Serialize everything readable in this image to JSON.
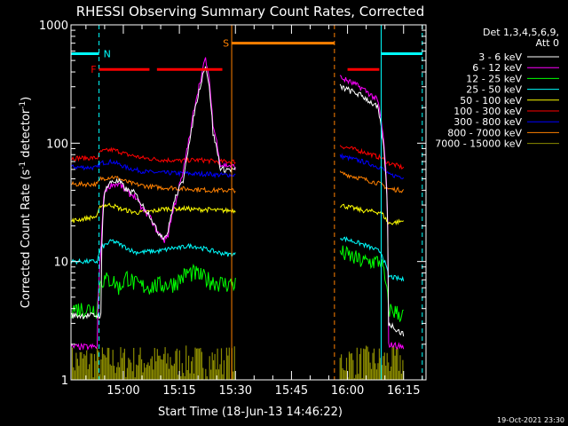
{
  "chart_data": {
    "type": "line",
    "title": "RHESSI Observing Summary Count Rates, Corrected",
    "xlabel": "Start Time (18-Jun-13 14:46:22)",
    "ylabel": "Corrected Count Rate (s",
    "ylabel_sup1": "-1",
    "ylabel_mid": " detector",
    "ylabel_sup2": "-1",
    "ylabel_end": ")",
    "xlim": [
      46,
      141
    ],
    "ylim": [
      1,
      1000
    ],
    "yscale": "log",
    "x_ticks": [
      {
        "value": 60,
        "label": "15:00"
      },
      {
        "value": 75,
        "label": "15:15"
      },
      {
        "value": 90,
        "label": "15:30"
      },
      {
        "value": 105,
        "label": "15:45"
      },
      {
        "value": 120,
        "label": "16:00"
      },
      {
        "value": 135,
        "label": "16:15"
      }
    ],
    "y_ticks": [
      {
        "value": 1,
        "label": "1"
      },
      {
        "value": 10,
        "label": "10"
      },
      {
        "value": 100,
        "label": "100"
      },
      {
        "value": 1000,
        "label": "1000"
      }
    ],
    "legend_header": [
      "Det 1,3,4,5,6,9,",
      "Att 0"
    ],
    "series": [
      {
        "name": "3 - 6 keV",
        "color": "#ffffff",
        "a": [
          [
            46,
            3.5
          ],
          [
            52,
            3.5
          ],
          [
            54,
            3.5
          ],
          [
            55,
            40
          ],
          [
            57,
            48
          ],
          [
            59,
            47
          ],
          [
            61,
            40
          ],
          [
            63,
            38
          ],
          [
            65,
            30
          ],
          [
            67,
            25
          ],
          [
            69,
            18
          ],
          [
            71,
            16
          ],
          [
            72,
            18
          ],
          [
            74,
            35
          ],
          [
            76,
            48
          ],
          [
            78,
            110
          ],
          [
            80,
            250
          ],
          [
            81,
            350
          ],
          [
            82,
            460
          ],
          [
            84,
            120
          ],
          [
            86,
            60
          ],
          [
            88,
            60
          ],
          [
            90,
            60
          ]
        ],
        "b": [
          [
            118,
            300
          ],
          [
            124,
            250
          ],
          [
            128,
            200
          ],
          [
            131,
            3
          ],
          [
            135,
            2.4
          ]
        ]
      },
      {
        "name": "6 - 12 keV",
        "color": "#ff00ff",
        "a": [
          [
            46,
            1.9
          ],
          [
            53,
            1.9
          ],
          [
            54,
            12
          ],
          [
            55,
            40
          ],
          [
            57,
            45
          ],
          [
            59,
            45
          ],
          [
            61,
            38
          ],
          [
            63,
            36
          ],
          [
            65,
            28
          ],
          [
            67,
            24
          ],
          [
            69,
            18
          ],
          [
            71,
            15
          ],
          [
            72,
            17
          ],
          [
            74,
            32
          ],
          [
            76,
            55
          ],
          [
            78,
            120
          ],
          [
            80,
            280
          ],
          [
            81,
            380
          ],
          [
            82,
            520
          ],
          [
            84,
            140
          ],
          [
            86,
            65
          ],
          [
            88,
            65
          ],
          [
            90,
            63
          ]
        ],
        "b": [
          [
            118,
            360
          ],
          [
            124,
            290
          ],
          [
            128,
            230
          ],
          [
            131,
            2
          ],
          [
            135,
            1.9
          ]
        ]
      },
      {
        "name": "12 - 25 keV",
        "color": "#00ff00",
        "a": [
          [
            46,
            4
          ],
          [
            53,
            4
          ],
          [
            54,
            7
          ],
          [
            57,
            7
          ],
          [
            59,
            6
          ],
          [
            61,
            7.5
          ],
          [
            63,
            6.5
          ],
          [
            65,
            6.2
          ],
          [
            67,
            6.2
          ],
          [
            69,
            6.3
          ],
          [
            71,
            6.4
          ],
          [
            73,
            6.5
          ],
          [
            75,
            7
          ],
          [
            77,
            8
          ],
          [
            79,
            8
          ],
          [
            81,
            7.5
          ],
          [
            83,
            7
          ],
          [
            85,
            6.7
          ],
          [
            87,
            6.5
          ],
          [
            90,
            6.5
          ]
        ],
        "b": [
          [
            118,
            12
          ],
          [
            124,
            10
          ],
          [
            129,
            10
          ],
          [
            131,
            4
          ],
          [
            135,
            3.5
          ]
        ]
      },
      {
        "name": "25 - 50 keV",
        "color": "#00ffff",
        "a": [
          [
            46,
            10
          ],
          [
            53,
            10
          ],
          [
            54,
            13
          ],
          [
            57,
            15
          ],
          [
            59,
            14
          ],
          [
            61,
            13
          ],
          [
            63,
            12
          ],
          [
            65,
            12
          ],
          [
            67,
            12.2
          ],
          [
            69,
            12.2
          ],
          [
            71,
            12.5
          ],
          [
            73,
            13
          ],
          [
            75,
            13
          ],
          [
            77,
            13.5
          ],
          [
            79,
            13.5
          ],
          [
            81,
            13
          ],
          [
            83,
            12.5
          ],
          [
            85,
            12
          ],
          [
            88,
            11.5
          ],
          [
            90,
            11.5
          ]
        ],
        "b": [
          [
            118,
            16
          ],
          [
            124,
            14
          ],
          [
            129,
            12
          ],
          [
            131,
            7.5
          ],
          [
            135,
            7
          ]
        ]
      },
      {
        "name": "50 - 100 keV",
        "color": "#ffff00",
        "a": [
          [
            46,
            22
          ],
          [
            53,
            24
          ],
          [
            54,
            30
          ],
          [
            57,
            30
          ],
          [
            59,
            28
          ],
          [
            61,
            27
          ],
          [
            63,
            26
          ],
          [
            65,
            26
          ],
          [
            67,
            26.5
          ],
          [
            69,
            27
          ],
          [
            71,
            28
          ],
          [
            73,
            28
          ],
          [
            75,
            28
          ],
          [
            77,
            28
          ],
          [
            79,
            27.5
          ],
          [
            81,
            27.5
          ],
          [
            83,
            27.5
          ],
          [
            85,
            27
          ],
          [
            88,
            27
          ],
          [
            90,
            27
          ]
        ],
        "b": [
          [
            118,
            30
          ],
          [
            124,
            27
          ],
          [
            129,
            26
          ],
          [
            131,
            21
          ],
          [
            135,
            22
          ]
        ]
      },
      {
        "name": "100 - 300 keV",
        "color": "#ff0000",
        "a": [
          [
            46,
            75
          ],
          [
            53,
            75
          ],
          [
            54,
            85
          ],
          [
            57,
            88
          ],
          [
            59,
            85
          ],
          [
            61,
            80
          ],
          [
            63,
            78
          ],
          [
            65,
            75
          ],
          [
            67,
            74
          ],
          [
            69,
            73
          ],
          [
            71,
            72
          ],
          [
            73,
            72
          ],
          [
            75,
            71
          ],
          [
            77,
            72
          ],
          [
            79,
            72
          ],
          [
            81,
            72
          ],
          [
            83,
            71
          ],
          [
            85,
            70
          ],
          [
            88,
            70
          ],
          [
            90,
            70
          ]
        ],
        "b": [
          [
            118,
            95
          ],
          [
            124,
            85
          ],
          [
            129,
            75
          ],
          [
            131,
            68
          ],
          [
            135,
            62
          ]
        ]
      },
      {
        "name": "300 - 800 keV",
        "color": "#0000ff",
        "a": [
          [
            46,
            63
          ],
          [
            53,
            62
          ],
          [
            54,
            68
          ],
          [
            57,
            70
          ],
          [
            59,
            66
          ],
          [
            61,
            62
          ],
          [
            63,
            60
          ],
          [
            65,
            58
          ],
          [
            67,
            57
          ],
          [
            69,
            56.5
          ],
          [
            71,
            56
          ],
          [
            73,
            56
          ],
          [
            75,
            55.5
          ],
          [
            77,
            55.5
          ],
          [
            79,
            55
          ],
          [
            81,
            55
          ],
          [
            83,
            55
          ],
          [
            85,
            54
          ],
          [
            88,
            54
          ],
          [
            90,
            54
          ]
        ],
        "b": [
          [
            118,
            78
          ],
          [
            124,
            70
          ],
          [
            129,
            62
          ],
          [
            131,
            54
          ],
          [
            135,
            52
          ]
        ]
      },
      {
        "name": "800 - 7000 keV",
        "color": "#ff8000",
        "a": [
          [
            46,
            45
          ],
          [
            53,
            45
          ],
          [
            54,
            50
          ],
          [
            57,
            52
          ],
          [
            59,
            50
          ],
          [
            61,
            47
          ],
          [
            63,
            45
          ],
          [
            65,
            44
          ],
          [
            67,
            43
          ],
          [
            69,
            42.5
          ],
          [
            71,
            42
          ],
          [
            73,
            42
          ],
          [
            75,
            41.5
          ],
          [
            77,
            41
          ],
          [
            79,
            41
          ],
          [
            81,
            40.5
          ],
          [
            83,
            40
          ],
          [
            85,
            40
          ],
          [
            88,
            40
          ],
          [
            90,
            40
          ]
        ],
        "b": [
          [
            118,
            56
          ],
          [
            124,
            50
          ],
          [
            129,
            45
          ],
          [
            131,
            41
          ],
          [
            135,
            40
          ]
        ]
      },
      {
        "name": "7000 - 15000 keV",
        "color": "#8b8b00",
        "a": [
          [
            46,
            1.7
          ],
          [
            90,
            1.7
          ]
        ],
        "b": [
          [
            118,
            1.7
          ],
          [
            135,
            1.7
          ]
        ]
      }
    ],
    "flag_bars": [
      {
        "label": "",
        "color": "#00ffff",
        "x0": 46,
        "x1": 53.5,
        "y": 570
      },
      {
        "label": "N",
        "color": "#00ffff",
        "x0": 53.5,
        "x1": 53.5,
        "y": 570
      },
      {
        "label": "F",
        "color": "#ff0000",
        "x0": 53.5,
        "x1": 67,
        "y": 420
      },
      {
        "label": "",
        "color": "#ff0000",
        "x0": 69,
        "x1": 86.5,
        "y": 420
      },
      {
        "label": "S",
        "color": "#ff8000",
        "x0": 89,
        "x1": 116.5,
        "y": 700
      },
      {
        "label": "",
        "color": "#ff0000",
        "x0": 120,
        "x1": 128.5,
        "y": 420
      },
      {
        "label": "",
        "color": "#00ffff",
        "x0": 129,
        "x1": 140,
        "y": 570
      }
    ],
    "vlines": [
      {
        "x": 53.5,
        "color": "#00ffff",
        "dash": true
      },
      {
        "x": 89,
        "color": "#ff8000",
        "dash": false
      },
      {
        "x": 116.5,
        "color": "#ff8000",
        "dash": true
      },
      {
        "x": 129,
        "color": "#00ffff",
        "dash": false
      },
      {
        "x": 140,
        "color": "#00ffff",
        "dash": true
      }
    ],
    "footer": "19-Oct-2021 23:30"
  }
}
